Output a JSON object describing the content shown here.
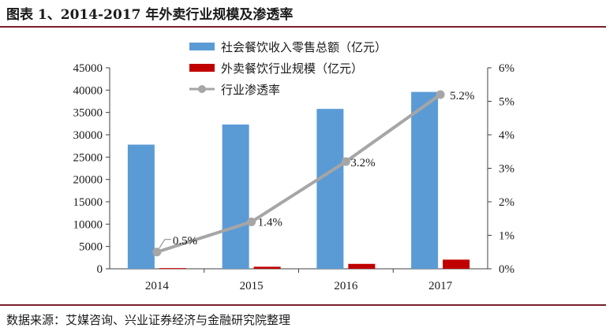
{
  "figure_title": "图表 1、2014-2017 年外卖行业规模及渗透率",
  "source_note": "数据来源：艾媒咨询、兴业证券经济与金融研究院整理",
  "chart_data": {
    "type": "bar+line",
    "categories": [
      "2014",
      "2015",
      "2016",
      "2017"
    ],
    "series": [
      {
        "name": "社会餐饮收入零售总额（亿元）",
        "type": "bar",
        "axis": "left",
        "color": "#5b9bd5",
        "values": [
          27800,
          32300,
          35800,
          39600
        ]
      },
      {
        "name": "外卖餐饮行业规模（亿元）",
        "type": "bar",
        "axis": "left",
        "color": "#c00000",
        "values": [
          150,
          460,
          1100,
          2050
        ]
      },
      {
        "name": "行业渗透率",
        "type": "line",
        "axis": "right",
        "color": "#a6a6a6",
        "values": [
          0.5,
          1.4,
          3.2,
          5.2
        ],
        "labels": [
          "0.5%",
          "1.4%",
          "3.2%",
          "5.2%"
        ]
      }
    ],
    "y_left": {
      "min": 0,
      "max": 45000,
      "step": 5000,
      "ticks": [
        "0",
        "5000",
        "10000",
        "15000",
        "20000",
        "25000",
        "30000",
        "35000",
        "40000",
        "45000"
      ]
    },
    "y_right": {
      "min": 0,
      "max": 6,
      "step": 1,
      "ticks": [
        "0%",
        "1%",
        "2%",
        "3%",
        "4%",
        "5%",
        "6%"
      ]
    },
    "legend_position": "top-center"
  }
}
